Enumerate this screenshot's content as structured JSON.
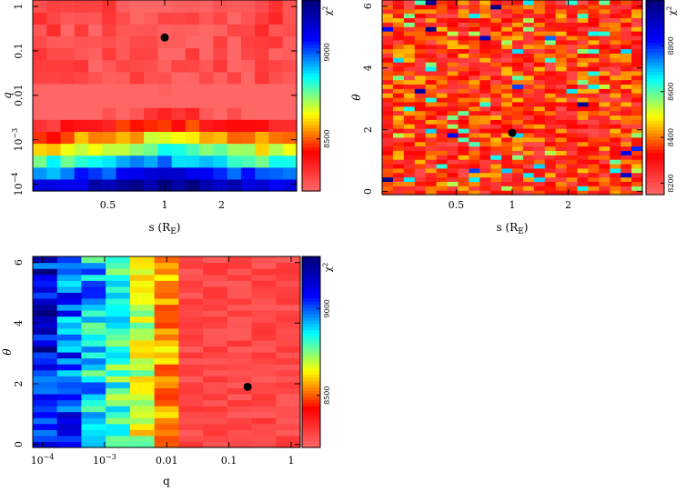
{
  "colors": {
    "background": "#ffffff",
    "marker": "#000000",
    "frame": "#000000"
  },
  "colorbar_stops": [
    "#00007f",
    "#0000ff",
    "#00ffff",
    "#ffff00",
    "#ff0000",
    "#ff6666"
  ],
  "chart_data": [
    {
      "id": "s-q",
      "type": "heatmap",
      "title": "",
      "xlabel": "s (R",
      "xlabel_sub": "E",
      "xlabel_close": ")",
      "ylabel": "q",
      "xscale": "log",
      "yscale": "log",
      "xlim": [
        0.2,
        5.0
      ],
      "ylim": [
        7e-05,
        1.4
      ],
      "xticks": [
        {
          "v": 0.5,
          "label": "0.5"
        },
        {
          "v": 1,
          "label": "1"
        },
        {
          "v": 2,
          "label": "2"
        }
      ],
      "yticks": [
        {
          "v": 1,
          "label": "1",
          "exp": ""
        },
        {
          "v": 0.1,
          "label": "0.1",
          "exp": ""
        },
        {
          "v": 0.01,
          "label": "0.01",
          "exp": ""
        },
        {
          "v": 0.001,
          "label": "10",
          "exp": "−3"
        },
        {
          "v": 0.0001,
          "label": "10",
          "exp": "−4"
        }
      ],
      "grid": {
        "nx": 19,
        "ny": 16
      },
      "colorbar": {
        "label": "χ",
        "label_exp": "2",
        "range": [
          8200,
          9300
        ],
        "ticks": [
          {
            "v": 8500,
            "label": "8500"
          },
          {
            "v": 9000,
            "label": "9000"
          }
        ]
      },
      "best_fit": {
        "x": 1.0,
        "y": 0.2
      }
    },
    {
      "id": "s-theta",
      "type": "heatmap",
      "title": "",
      "xlabel": "s (R",
      "xlabel_sub": "E",
      "xlabel_close": ")",
      "ylabel": "θ",
      "xscale": "log",
      "yscale": "linear",
      "xlim": [
        0.2,
        5.0
      ],
      "ylim": [
        -0.1,
        6.2
      ],
      "xticks": [
        {
          "v": 0.5,
          "label": "0.5"
        },
        {
          "v": 1,
          "label": "1"
        },
        {
          "v": 2,
          "label": "2"
        }
      ],
      "yticks": [
        {
          "v": 0,
          "label": "0",
          "exp": ""
        },
        {
          "v": 2,
          "label": "2",
          "exp": ""
        },
        {
          "v": 4,
          "label": "4",
          "exp": ""
        },
        {
          "v": 6,
          "label": "6",
          "exp": ""
        }
      ],
      "grid": {
        "nx": 24,
        "ny": 44
      },
      "colorbar": {
        "label": "χ",
        "label_exp": "2",
        "range": [
          8150,
          9000
        ],
        "ticks": [
          {
            "v": 8200,
            "label": "8200"
          },
          {
            "v": 8400,
            "label": "8400"
          },
          {
            "v": 8600,
            "label": "8600"
          },
          {
            "v": 8800,
            "label": "8800"
          }
        ]
      },
      "best_fit": {
        "x": 1.0,
        "y": 1.9
      }
    },
    {
      "id": "q-theta",
      "type": "heatmap",
      "title": "",
      "xlabel": "q",
      "xlabel_sub": "",
      "xlabel_close": "",
      "ylabel": "θ",
      "xscale": "log",
      "yscale": "linear",
      "xlim": [
        7e-05,
        1.4
      ],
      "ylim": [
        -0.1,
        6.2
      ],
      "xticks": [
        {
          "v": 0.0001,
          "label": "10",
          "exp": "−4"
        },
        {
          "v": 0.001,
          "label": "10",
          "exp": "−3"
        },
        {
          "v": 0.01,
          "label": "0.01",
          "exp": ""
        },
        {
          "v": 0.1,
          "label": "0.1",
          "exp": ""
        },
        {
          "v": 1,
          "label": "1",
          "exp": ""
        }
      ],
      "yticks": [
        {
          "v": 0,
          "label": "0",
          "exp": ""
        },
        {
          "v": 2,
          "label": "2",
          "exp": ""
        },
        {
          "v": 4,
          "label": "4",
          "exp": ""
        },
        {
          "v": 6,
          "label": "6",
          "exp": ""
        }
      ],
      "grid": {
        "nx": 11,
        "ny": 32
      },
      "colorbar": {
        "label": "χ",
        "label_exp": "2",
        "range": [
          8200,
          9300
        ],
        "ticks": [
          {
            "v": 8500,
            "label": "8500"
          },
          {
            "v": 9000,
            "label": "9000"
          }
        ]
      },
      "best_fit": {
        "x": 0.2,
        "y": 1.9
      }
    }
  ]
}
